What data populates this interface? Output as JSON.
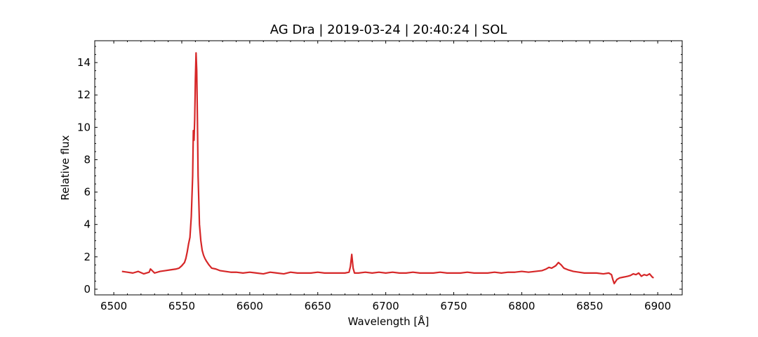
{
  "chart_data": {
    "type": "line",
    "title": "AG Dra | 2019-03-24 | 20:40:24 | SOL",
    "xlabel": "Wavelength [Å]",
    "ylabel": "Relative flux",
    "xlim": [
      6486,
      6918
    ],
    "ylim": [
      -0.35,
      15.35
    ],
    "xticks": [
      6500,
      6550,
      6600,
      6650,
      6700,
      6750,
      6800,
      6850,
      6900
    ],
    "xtick_labels": [
      "6500",
      "6550",
      "6600",
      "6650",
      "6700",
      "6750",
      "6800",
      "6850",
      "6900"
    ],
    "yticks": [
      0,
      2,
      4,
      6,
      8,
      10,
      12,
      14
    ],
    "ytick_labels": [
      "0",
      "2",
      "4",
      "6",
      "8",
      "10",
      "12",
      "14"
    ],
    "grid": false,
    "series": [
      {
        "color": "#d62728",
        "x": [
          6506,
          6510,
          6514,
          6518,
          6522,
          6526,
          6527,
          6530,
          6534,
          6538,
          6542,
          6546,
          6548,
          6550,
          6552,
          6553,
          6554,
          6555,
          6556,
          6557,
          6558,
          6558.5,
          6559,
          6559.5,
          6560,
          6560.5,
          6561,
          6561.5,
          6562,
          6563,
          6564,
          6565,
          6566,
          6567,
          6568,
          6570,
          6572,
          6575,
          6578,
          6582,
          6586,
          6590,
          6595,
          6600,
          6605,
          6610,
          6615,
          6620,
          6625,
          6630,
          6635,
          6640,
          6645,
          6650,
          6655,
          6660,
          6665,
          6670,
          6673,
          6674,
          6675,
          6676,
          6677,
          6680,
          6685,
          6690,
          6695,
          6700,
          6705,
          6710,
          6715,
          6720,
          6725,
          6730,
          6735,
          6740,
          6745,
          6750,
          6755,
          6760,
          6765,
          6770,
          6775,
          6780,
          6785,
          6790,
          6795,
          6800,
          6805,
          6810,
          6815,
          6818,
          6820,
          6822,
          6825,
          6827,
          6829,
          6831,
          6834,
          6838,
          6842,
          6846,
          6850,
          6855,
          6860,
          6864,
          6866,
          6867,
          6868,
          6870,
          6872,
          6875,
          6878,
          6880,
          6882,
          6884,
          6886,
          6888,
          6890,
          6892,
          6894,
          6896,
          6897
        ],
        "y": [
          1.1,
          1.05,
          1.0,
          1.1,
          0.95,
          1.05,
          1.25,
          1.0,
          1.1,
          1.15,
          1.2,
          1.25,
          1.3,
          1.45,
          1.65,
          1.9,
          2.3,
          2.8,
          3.2,
          4.5,
          7.0,
          9.8,
          9.2,
          10.5,
          13.0,
          14.6,
          13.5,
          10.5,
          7.0,
          4.0,
          3.0,
          2.4,
          2.1,
          1.9,
          1.75,
          1.5,
          1.3,
          1.25,
          1.15,
          1.1,
          1.05,
          1.05,
          1.0,
          1.05,
          1.0,
          0.95,
          1.05,
          1.0,
          0.95,
          1.05,
          1.0,
          1.0,
          1.0,
          1.05,
          1.0,
          1.0,
          1.0,
          1.0,
          1.05,
          1.4,
          2.15,
          1.3,
          1.0,
          1.0,
          1.05,
          1.0,
          1.05,
          1.0,
          1.05,
          1.0,
          1.0,
          1.05,
          1.0,
          1.0,
          1.0,
          1.05,
          1.0,
          1.0,
          1.0,
          1.05,
          1.0,
          1.0,
          1.0,
          1.05,
          1.0,
          1.05,
          1.05,
          1.1,
          1.05,
          1.1,
          1.15,
          1.25,
          1.35,
          1.3,
          1.45,
          1.65,
          1.5,
          1.3,
          1.2,
          1.1,
          1.05,
          1.0,
          1.0,
          1.0,
          0.95,
          1.0,
          0.9,
          0.6,
          0.35,
          0.6,
          0.7,
          0.75,
          0.8,
          0.85,
          0.95,
          0.9,
          1.0,
          0.8,
          0.9,
          0.85,
          0.95,
          0.75,
          0.7
        ]
      }
    ]
  }
}
